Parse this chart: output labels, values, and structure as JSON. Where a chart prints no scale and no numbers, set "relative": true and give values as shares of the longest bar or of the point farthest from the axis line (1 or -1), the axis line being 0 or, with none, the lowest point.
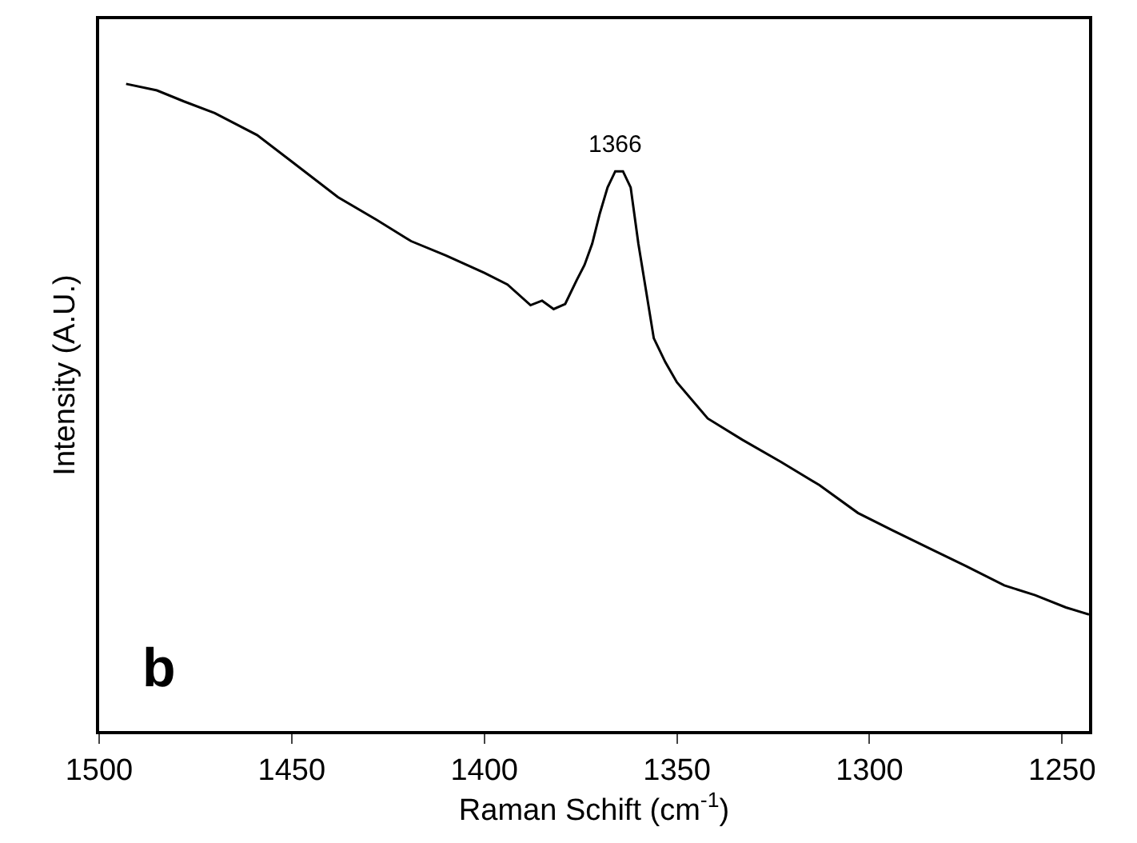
{
  "chart_data": {
    "type": "line",
    "relative": true,
    "xlabel": "Raman Schift (cm$^{-1}$)",
    "ylabel": "Intensity (A.U.)",
    "xlim": [
      1500,
      1243
    ],
    "xticks": [
      1500,
      1450,
      1400,
      1350,
      1300,
      1250
    ],
    "x": [
      1493,
      1485,
      1478,
      1470,
      1459,
      1450,
      1438,
      1428,
      1419,
      1410,
      1400,
      1394,
      1388,
      1385,
      1382,
      1379,
      1376,
      1374,
      1372,
      1370,
      1368,
      1366,
      1364,
      1362,
      1360,
      1358,
      1356,
      1353,
      1350,
      1342,
      1333,
      1323,
      1313,
      1303,
      1294,
      1284,
      1275,
      1265,
      1257,
      1249,
      1243
    ],
    "series": [
      {
        "color": "#000000",
        "values": [
          1.0,
          0.99,
          0.973,
          0.955,
          0.921,
          0.88,
          0.825,
          0.79,
          0.757,
          0.735,
          0.708,
          0.69,
          0.658,
          0.665,
          0.652,
          0.66,
          0.697,
          0.72,
          0.753,
          0.8,
          0.84,
          0.865,
          0.865,
          0.84,
          0.753,
          0.68,
          0.607,
          0.57,
          0.539,
          0.483,
          0.45,
          0.416,
          0.38,
          0.337,
          0.31,
          0.281,
          0.255,
          0.225,
          0.21,
          0.191,
          0.18
        ]
      }
    ],
    "annotations": [
      {
        "text": "1366",
        "x": 1366,
        "y": 0.865
      },
      "b"
    ],
    "grid": false,
    "marker": "none",
    "line_style": "solid"
  }
}
